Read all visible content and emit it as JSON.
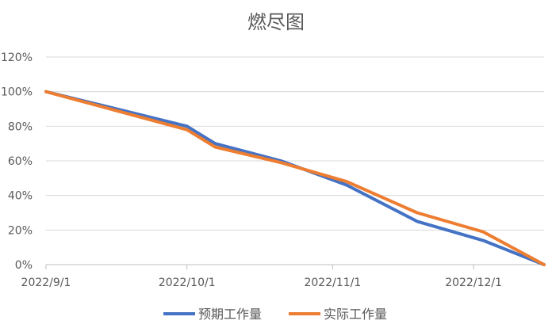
{
  "chart_data": {
    "type": "line",
    "title": "燃尽图",
    "xlabel": "",
    "ylabel": "",
    "x_ticks": [
      "2022/9/1",
      "2022/10/1",
      "2022/11/1",
      "2022/12/1"
    ],
    "y_ticks": [
      "0%",
      "20%",
      "40%",
      "60%",
      "80%",
      "100%",
      "120%"
    ],
    "ylim": [
      0,
      1.2
    ],
    "xlim": [
      "2022-09-01",
      "2022-12-16"
    ],
    "grid": true,
    "legend_position": "bottom",
    "series": [
      {
        "name": "预期工作量",
        "color": "#4472C4",
        "x": [
          "2022-09-01",
          "2022-09-16",
          "2022-10-01",
          "2022-10-07",
          "2022-10-21",
          "2022-11-04",
          "2022-11-19",
          "2022-12-03",
          "2022-12-16"
        ],
        "values": [
          1.0,
          0.9,
          0.8,
          0.7,
          0.6,
          0.46,
          0.25,
          0.14,
          0.0
        ]
      },
      {
        "name": "实际工作量",
        "color": "#ED7D31",
        "x": [
          "2022-09-01",
          "2022-09-16",
          "2022-10-01",
          "2022-10-07",
          "2022-10-21",
          "2022-11-04",
          "2022-11-19",
          "2022-12-03",
          "2022-12-16"
        ],
        "values": [
          1.0,
          0.89,
          0.78,
          0.68,
          0.59,
          0.48,
          0.3,
          0.19,
          0.0
        ]
      }
    ]
  }
}
